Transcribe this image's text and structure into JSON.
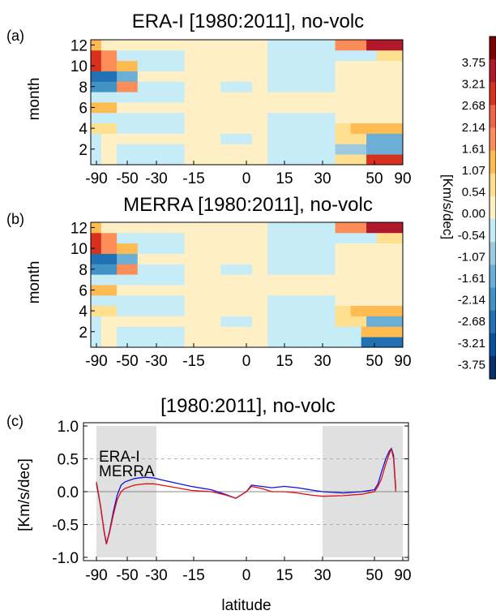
{
  "chart_data": [
    {
      "type": "heatmap",
      "panel_label": "(a)",
      "title": "ERA-I [1980:2011], no-volc",
      "ylabel": "month",
      "x_ticks": [
        "-90",
        "-50",
        "-30",
        "-15",
        "0",
        "15",
        "30",
        "50",
        "90"
      ],
      "y_ticks": [
        "2",
        "4",
        "6",
        "8",
        "10",
        "12"
      ],
      "rows_by_month_1_to_12": [
        "33000000111111000000000000001111111111111111100000",
        "11000000111111000000000000000111111111111111100000",
        "11000000000000000000000000000000001111111111111000",
        "00111111111111100000000000000011111111111111100000",
        "00111000000000000000000000000000000111111111111111",
        "00000000011111000000000000000000000000000000000000",
        "00000000000001000000000000000000000000000000000000",
        "00000000000000000000000000000000000000000000000000",
        "00000000000001000000000000000000000000000000000000",
        "00000000000000000000000000000000000000000000000000",
        "00000000000000000000000000000000000000000000000000",
        "00000000000000000000000000000000000000000000000000"
      ]
    },
    {
      "type": "heatmap",
      "panel_label": "(b)",
      "title": "MERRA [1980:2011], no-volc",
      "ylabel": "month",
      "x_ticks": [
        "-90",
        "-50",
        "-30",
        "-15",
        "0",
        "15",
        "30",
        "50",
        "90"
      ],
      "y_ticks": [
        "2",
        "4",
        "6",
        "8",
        "10",
        "12"
      ]
    },
    {
      "type": "line",
      "panel_label": "(c)",
      "title": "[1980:2011], no-volc",
      "xlabel": "latitude",
      "ylabel": "[Km/s/dec]",
      "x_ticks": [
        "-90",
        "-50",
        "-30",
        "-15",
        "0",
        "15",
        "30",
        "50",
        "90"
      ],
      "y_ticks": [
        "1.0",
        "0.5",
        "0.0",
        "-0.5",
        "-1.0"
      ],
      "ylim": [
        -1.05,
        1.05
      ],
      "shaded_bands": [
        [
          -90,
          -30
        ],
        [
          30,
          90
        ]
      ],
      "series": [
        {
          "name": "ERA-I",
          "color": "#1010e0",
          "points": [
            [
              -90,
              0.12
            ],
            [
              -85,
              -0.2
            ],
            [
              -80,
              -0.6
            ],
            [
              -77,
              -0.79
            ],
            [
              -73,
              -0.6
            ],
            [
              -68,
              -0.3
            ],
            [
              -63,
              -0.05
            ],
            [
              -58,
              0.1
            ],
            [
              -53,
              0.15
            ],
            [
              -45,
              0.2
            ],
            [
              -38,
              0.22
            ],
            [
              -32,
              0.21
            ],
            [
              -28,
              0.18
            ],
            [
              -22,
              0.13
            ],
            [
              -16,
              0.08
            ],
            [
              -10,
              0.03
            ],
            [
              -6,
              -0.04
            ],
            [
              -3,
              -0.1
            ],
            [
              0,
              0.0
            ],
            [
              2,
              0.1
            ],
            [
              6,
              0.08
            ],
            [
              10,
              0.06
            ],
            [
              15,
              0.08
            ],
            [
              20,
              0.06
            ],
            [
              25,
              0.03
            ],
            [
              30,
              0.0
            ],
            [
              38,
              -0.02
            ],
            [
              45,
              0.0
            ],
            [
              50,
              0.03
            ],
            [
              55,
              0.12
            ],
            [
              60,
              0.3
            ],
            [
              66,
              0.5
            ],
            [
              71,
              0.62
            ],
            [
              74,
              0.66
            ],
            [
              77,
              0.55
            ],
            [
              80,
              0.05
            ]
          ]
        },
        {
          "name": "MERRA",
          "color": "#e01010",
          "points": [
            [
              -90,
              0.15
            ],
            [
              -85,
              -0.2
            ],
            [
              -80,
              -0.62
            ],
            [
              -77,
              -0.8
            ],
            [
              -73,
              -0.62
            ],
            [
              -68,
              -0.35
            ],
            [
              -63,
              -0.12
            ],
            [
              -58,
              0.0
            ],
            [
              -53,
              0.05
            ],
            [
              -45,
              0.1
            ],
            [
              -38,
              0.12
            ],
            [
              -32,
              0.12
            ],
            [
              -28,
              0.1
            ],
            [
              -22,
              0.06
            ],
            [
              -16,
              0.02
            ],
            [
              -10,
              0.0
            ],
            [
              -6,
              -0.05
            ],
            [
              -3,
              -0.1
            ],
            [
              0,
              0.0
            ],
            [
              2,
              0.08
            ],
            [
              6,
              0.05
            ],
            [
              10,
              0.0
            ],
            [
              15,
              0.0
            ],
            [
              20,
              -0.02
            ],
            [
              25,
              -0.05
            ],
            [
              30,
              -0.07
            ],
            [
              38,
              -0.06
            ],
            [
              45,
              -0.04
            ],
            [
              50,
              0.0
            ],
            [
              55,
              0.08
            ],
            [
              60,
              0.2
            ],
            [
              66,
              0.42
            ],
            [
              71,
              0.58
            ],
            [
              74,
              0.65
            ],
            [
              77,
              0.5
            ],
            [
              80,
              0.0
            ]
          ]
        }
      ]
    }
  ],
  "colorbar": {
    "label": "[Km/s/dec]",
    "ticks": [
      "3.75",
      "3.21",
      "2.68",
      "2.14",
      "1.61",
      "1.07",
      "0.54",
      "0.00",
      "-0.54",
      "-1.07",
      "-1.61",
      "-2.14",
      "-2.68",
      "-3.21",
      "-3.75"
    ],
    "colors_top_to_bottom": [
      "#7f0000",
      "#b2182b",
      "#d7301f",
      "#ef6548",
      "#fc8d59",
      "#fdbb52",
      "#fee090",
      "#fef0c4",
      "#c6ecf8",
      "#9ecae1",
      "#6baed6",
      "#4292c6",
      "#2171b5",
      "#08519c",
      "#08306b"
    ]
  },
  "palette": {
    "shade": "#e0e0e0",
    "zero_line": "#888888",
    "ref_dashed": "#b0b0b0"
  }
}
